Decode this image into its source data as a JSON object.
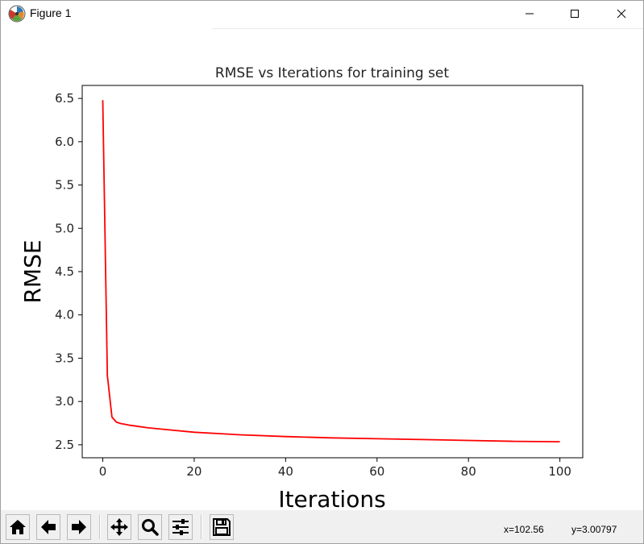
{
  "window": {
    "title": "Figure 1",
    "icon": "matplotlib-logo-icon",
    "controls": [
      "minimize-icon",
      "maximize-icon",
      "close-icon"
    ]
  },
  "toolbar": {
    "buttons": [
      "home-icon",
      "back-arrow-icon",
      "forward-arrow-icon",
      "pan-icon",
      "zoom-icon",
      "configure-subplots-icon",
      "save-icon"
    ],
    "x_readout": "x=102.56",
    "y_readout": "y=3.00797"
  },
  "chart_data": {
    "type": "line",
    "title": "RMSE vs Iterations for training set",
    "xlabel": "Iterations",
    "ylabel": "RMSE",
    "xlim": [
      -4.5,
      105
    ],
    "ylim": [
      2.35,
      6.65
    ],
    "xticks": [
      0,
      20,
      40,
      60,
      80,
      100
    ],
    "yticks": [
      2.5,
      3.0,
      3.5,
      4.0,
      4.5,
      5.0,
      5.5,
      6.0,
      6.5
    ],
    "grid": false,
    "line_color": "#ff0000",
    "series": [
      {
        "x": [
          0,
          1,
          2,
          3,
          4,
          5,
          6,
          8,
          10,
          15,
          20,
          25,
          30,
          40,
          50,
          60,
          70,
          80,
          90,
          100
        ],
        "y": [
          6.48,
          3.3,
          2.82,
          2.76,
          2.745,
          2.735,
          2.725,
          2.71,
          2.695,
          2.67,
          2.645,
          2.63,
          2.615,
          2.595,
          2.58,
          2.57,
          2.56,
          2.55,
          2.54,
          2.535
        ]
      }
    ]
  }
}
